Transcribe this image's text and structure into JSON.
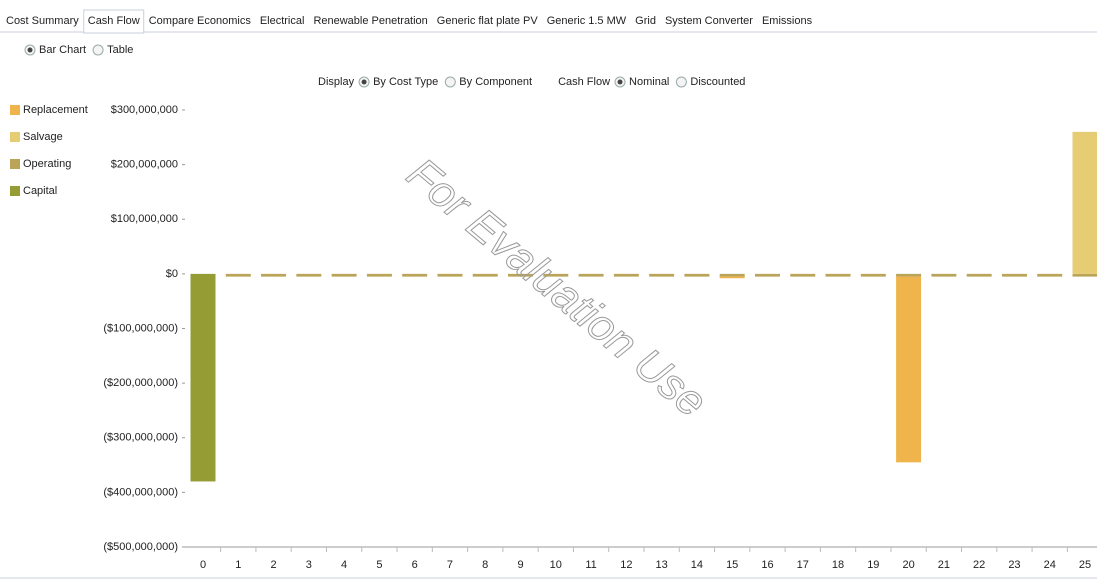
{
  "tabs": {
    "items": [
      "Cost Summary",
      "Cash Flow",
      "Compare Economics",
      "Electrical",
      "Renewable Penetration",
      "Generic flat plate PV",
      "Generic 1.5 MW",
      "Grid",
      "System Converter",
      "Emissions"
    ],
    "active": 1
  },
  "view": {
    "options": [
      "Bar Chart",
      "Table"
    ],
    "selected": 0
  },
  "display": {
    "label": "Display",
    "options": [
      "By Cost Type",
      "By Component"
    ],
    "selected": 0
  },
  "cash_flow": {
    "label": "Cash Flow",
    "options": [
      "Nominal",
      "Discounted"
    ],
    "selected": 0
  },
  "watermark": "For Evaluation Use",
  "chart_data": {
    "type": "bar",
    "stacked": true,
    "legend": "left",
    "categories": [
      "0",
      "1",
      "2",
      "3",
      "4",
      "5",
      "6",
      "7",
      "8",
      "9",
      "10",
      "11",
      "12",
      "13",
      "14",
      "15",
      "16",
      "17",
      "18",
      "19",
      "20",
      "21",
      "22",
      "23",
      "24",
      "25"
    ],
    "series": [
      {
        "name": "Replacement",
        "color": "#f0b44c",
        "values": [
          null,
          null,
          null,
          null,
          null,
          null,
          null,
          null,
          null,
          null,
          null,
          null,
          null,
          null,
          null,
          -3000000,
          null,
          null,
          null,
          null,
          -340000000,
          null,
          null,
          null,
          null,
          null
        ]
      },
      {
        "name": "Salvage",
        "color": "#e6cc72",
        "values": [
          null,
          null,
          null,
          null,
          null,
          null,
          null,
          null,
          null,
          null,
          null,
          null,
          null,
          null,
          null,
          null,
          null,
          null,
          null,
          null,
          null,
          null,
          null,
          null,
          null,
          260000000
        ]
      },
      {
        "name": "Operating",
        "color": "#b9a458",
        "values": [
          null,
          -5000000,
          -5000000,
          -5000000,
          -5000000,
          -5000000,
          -5000000,
          -5000000,
          -5000000,
          -5000000,
          -5000000,
          -5000000,
          -5000000,
          -5000000,
          -5000000,
          -5000000,
          -5000000,
          -5000000,
          -5000000,
          -5000000,
          -5000000,
          -5000000,
          -5000000,
          -5000000,
          -5000000,
          -5000000
        ]
      },
      {
        "name": "Capital",
        "color": "#959c34",
        "values": [
          -380000000,
          null,
          null,
          null,
          null,
          null,
          null,
          null,
          null,
          null,
          null,
          null,
          null,
          null,
          null,
          null,
          null,
          null,
          null,
          null,
          null,
          null,
          null,
          null,
          null,
          null
        ]
      }
    ],
    "ylim": [
      -500000000,
      300000000
    ],
    "yticks": [
      {
        "value": 300000000,
        "label": "$300,000,000"
      },
      {
        "value": 200000000,
        "label": "$200,000,000"
      },
      {
        "value": 100000000,
        "label": "$100,000,000"
      },
      {
        "value": 0,
        "label": "$0"
      },
      {
        "value": -100000000,
        "label": "($100,000,000)"
      },
      {
        "value": -200000000,
        "label": "($200,000,000)"
      },
      {
        "value": -300000000,
        "label": "($300,000,000)"
      },
      {
        "value": -400000000,
        "label": "($400,000,000)"
      },
      {
        "value": -500000000,
        "label": "($500,000,000)"
      }
    ]
  }
}
